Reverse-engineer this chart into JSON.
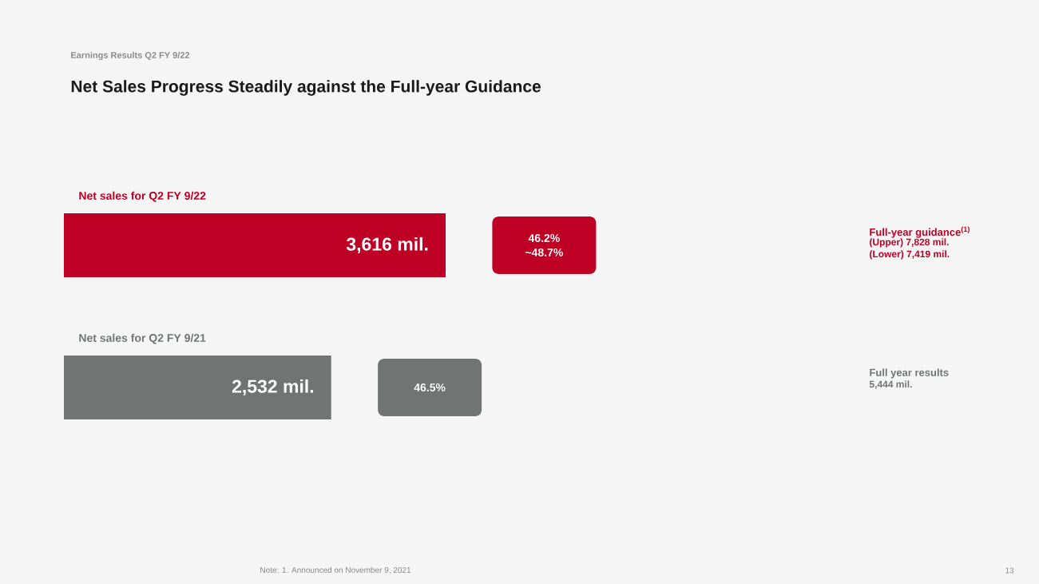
{
  "chart_data": {
    "type": "bar",
    "orientation": "horizontal",
    "subtitle": "Earnings Results Q2 FY 9/22",
    "title": "Net Sales Progress Steadily against the Full-year Guidance",
    "categories": [
      "Net sales for Q2 FY 9/22",
      "Net sales for Q2 FY 9/21"
    ],
    "values": [
      3616,
      2532
    ],
    "value_labels": [
      "3,616 mil.",
      "2,532 mil."
    ],
    "colors": [
      "#be0025",
      "#707573"
    ],
    "annotations": [
      "46.2%",
      "~48.7%",
      "46.5%",
      "Full-year guidance$^{(1)}$",
      "(Upper) 7,828 mil.",
      "(Lower) 7,419 mil.",
      "Full year results",
      "5,444 mil.",
      "Note: 1. Announced on November 9, 2021",
      "13"
    ]
  }
}
